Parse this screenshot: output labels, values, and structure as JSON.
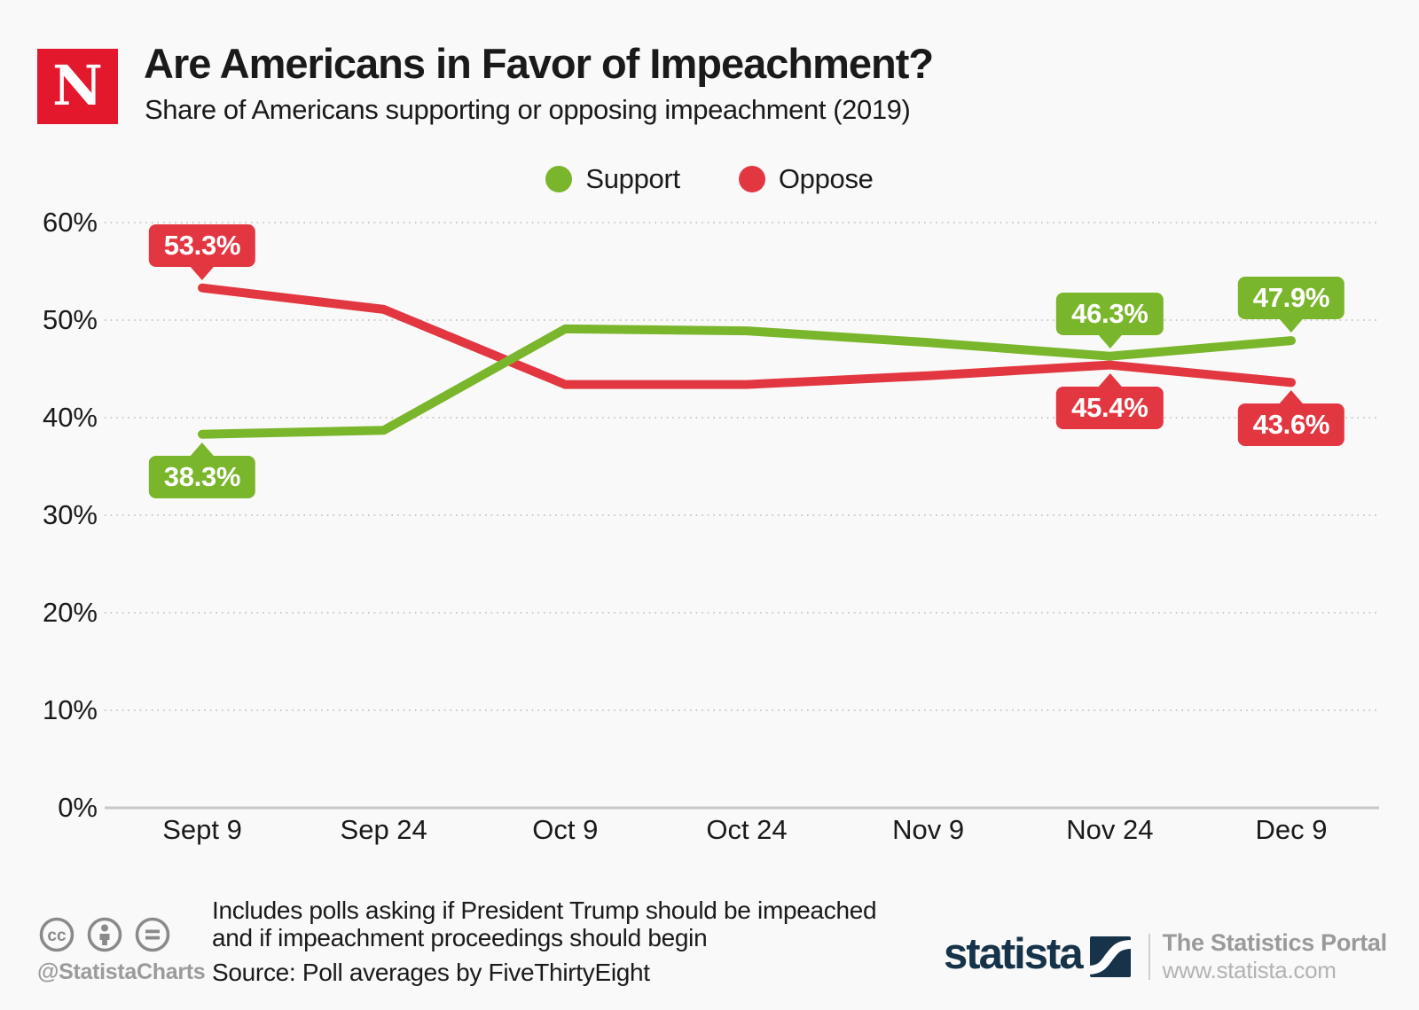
{
  "header": {
    "logo_letter": "N",
    "title": "Are Americans in Favor of Impeachment?",
    "subtitle": "Share of Americans supporting or opposing impeachment (2019)"
  },
  "chart_data": {
    "type": "line",
    "title": "Are Americans in Favor of Impeachment?",
    "subtitle": "Share of Americans supporting or opposing impeachment (2019)",
    "categories": [
      "Sept 9",
      "Sep 24",
      "Oct 9",
      "Oct 24",
      "Nov 9",
      "Nov 24",
      "Dec 9"
    ],
    "series": [
      {
        "name": "Support",
        "color": "#7AB62B",
        "values": [
          38.3,
          38.7,
          49.1,
          48.9,
          47.7,
          46.3,
          47.9
        ]
      },
      {
        "name": "Oppose",
        "color": "#E23740",
        "values": [
          53.3,
          51.1,
          43.4,
          43.4,
          44.3,
          45.4,
          43.6
        ]
      }
    ],
    "ylim": [
      0,
      60
    ],
    "yticks": [
      0,
      10,
      20,
      30,
      40,
      50,
      60
    ],
    "ytick_suffix": "%",
    "grid": "dotted-horizontal",
    "legend_position": "top-center",
    "callouts": [
      {
        "series": 1,
        "point": 0,
        "label": "53.3%",
        "placement": "above"
      },
      {
        "series": 0,
        "point": 0,
        "label": "38.3%",
        "placement": "below"
      },
      {
        "series": 0,
        "point": 5,
        "label": "46.3%",
        "placement": "above"
      },
      {
        "series": 1,
        "point": 5,
        "label": "45.4%",
        "placement": "below"
      },
      {
        "series": 0,
        "point": 6,
        "label": "47.9%",
        "placement": "above"
      },
      {
        "series": 1,
        "point": 6,
        "label": "43.6%",
        "placement": "below"
      }
    ]
  },
  "footer": {
    "handle": "@StatistaCharts",
    "note_line1": "Includes polls asking if President Trump should be impeached",
    "note_line2": "and if impeachment proceedings should begin",
    "source": "Source: Poll averages by FiveThirtyEight",
    "statista": {
      "wordmark": "statista",
      "portal": "The Statistics Portal",
      "url": "www.statista.com"
    }
  },
  "colors": {
    "background": "#F9F9F9",
    "newsweek_red": "#E4182C",
    "support_green": "#7AB62B",
    "oppose_red": "#E23740",
    "statista_navy": "#16334A",
    "text": "#1A1A1A",
    "footer_gray": "#9B9B9B"
  }
}
